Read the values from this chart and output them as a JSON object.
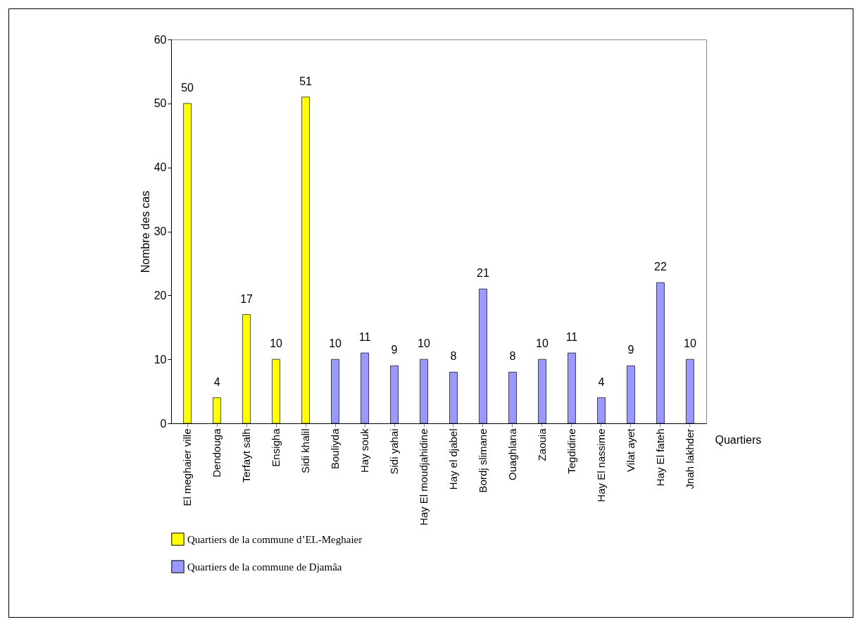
{
  "chart_data": {
    "type": "bar",
    "xlabel": "Quartiers",
    "ylabel": "Nombre des cas",
    "categories": [
      "El meghaier ville",
      "Dendouga",
      "Terfayt salh",
      "Ensigha",
      "Sidi khalil",
      "Bouliyda",
      "Hay souk",
      "Sidi yahai",
      "Hay El moudjahidine",
      "Hay el djabel",
      "Bordj slimane",
      "Ouaghlana",
      "Zaouia",
      "Tegdidine",
      "Hay El nassime",
      "Vilat ayet",
      "Hay El fateh",
      "Jnah lakhder"
    ],
    "series": [
      {
        "name": "Quartiers de la commune d’EL-Meghaier",
        "color": "#ffff00",
        "values": [
          50,
          4,
          17,
          10,
          51,
          null,
          null,
          null,
          null,
          null,
          null,
          null,
          null,
          null,
          null,
          null,
          null,
          null
        ]
      },
      {
        "name": "Quartiers de la commune de  Djamâa",
        "color": "#9999ff",
        "values": [
          null,
          null,
          null,
          null,
          null,
          10,
          11,
          9,
          10,
          8,
          21,
          8,
          10,
          11,
          4,
          9,
          22,
          10
        ]
      }
    ],
    "ylim": [
      0,
      60
    ],
    "yticks": [
      0,
      10,
      20,
      30,
      40,
      50,
      60
    ],
    "grid": false,
    "data_labels": true,
    "legend": "bottom left"
  }
}
